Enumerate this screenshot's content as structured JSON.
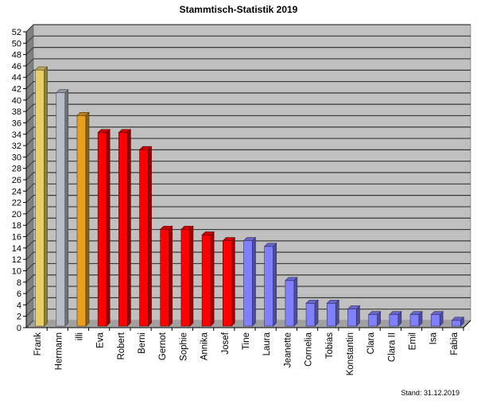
{
  "chart_data": {
    "type": "bar",
    "title": "Stammtisch-Statistik 2019",
    "footnote": "Stand: 31.12.2019",
    "xlabel": "",
    "ylabel": "",
    "ylim": [
      0,
      52
    ],
    "yticks": [
      0,
      2,
      4,
      6,
      8,
      10,
      12,
      14,
      16,
      18,
      20,
      22,
      24,
      26,
      28,
      30,
      32,
      34,
      36,
      38,
      40,
      42,
      44,
      46,
      48,
      50,
      52
    ],
    "grid": true,
    "style": "3d-column",
    "categories": [
      "Frank",
      "Hermann",
      "illi",
      "Eva",
      "Robert",
      "Berni",
      "Gernot",
      "Sophie",
      "Annika",
      "Josef",
      "Tine",
      "Laura",
      "Jeanette",
      "Cornelia",
      "Tobias",
      "Konstantin",
      "Clara",
      "Clara II",
      "Emil",
      "Isa",
      "Fabia"
    ],
    "values": [
      45,
      41,
      37,
      34,
      34,
      31,
      17,
      17,
      16,
      15,
      15,
      14,
      8,
      4,
      4,
      3,
      2,
      2,
      2,
      2,
      1
    ],
    "bar_colors": [
      "#e8cf6a",
      "#b8bcc8",
      "#e8a020",
      "#ff0000",
      "#ff0000",
      "#ff0000",
      "#ff0000",
      "#ff0000",
      "#ff0000",
      "#ff0000",
      "#8080ff",
      "#8080ff",
      "#8080ff",
      "#8080ff",
      "#8080ff",
      "#8080ff",
      "#8080ff",
      "#8080ff",
      "#8080ff",
      "#8080ff",
      "#8080ff"
    ]
  },
  "colors": {
    "wall": "#c0c0c0",
    "side_wall": "#808080",
    "floor": "#a0a0a0",
    "grid": "#3a3a3a"
  }
}
